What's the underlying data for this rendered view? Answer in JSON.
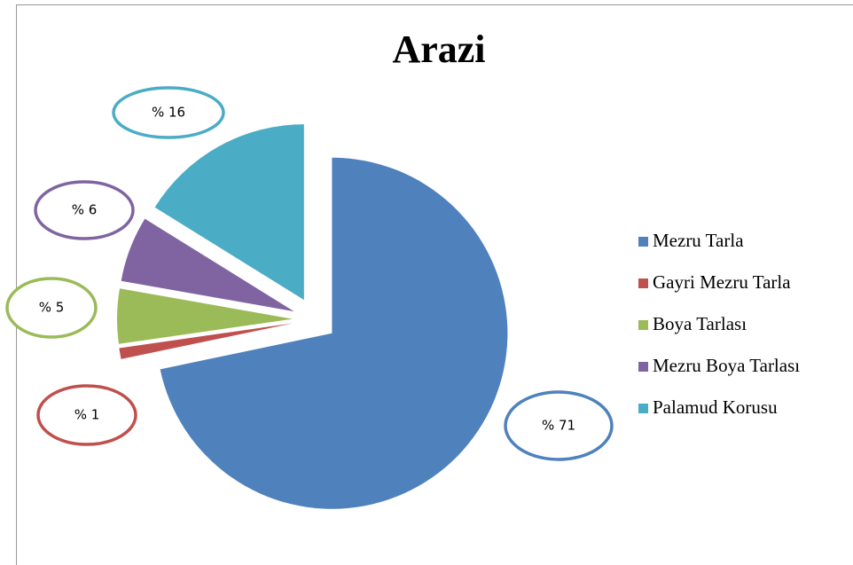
{
  "chart_data": {
    "type": "pie",
    "title": "Arazi",
    "categories": [
      "Mezru Tarla",
      "Gayri Mezru Tarla",
      "Boya Tarlası",
      "Mezru Boya Tarlası",
      "Palamud Korusu"
    ],
    "values": [
      71,
      1,
      5,
      6,
      16
    ],
    "value_labels": [
      "% 71",
      "% 1",
      "% 5",
      "% 6",
      "% 16"
    ],
    "colors": [
      "#4f81bd",
      "#c0504d",
      "#9bbb59",
      "#8064a2",
      "#4bacc6"
    ],
    "legend": "right"
  }
}
